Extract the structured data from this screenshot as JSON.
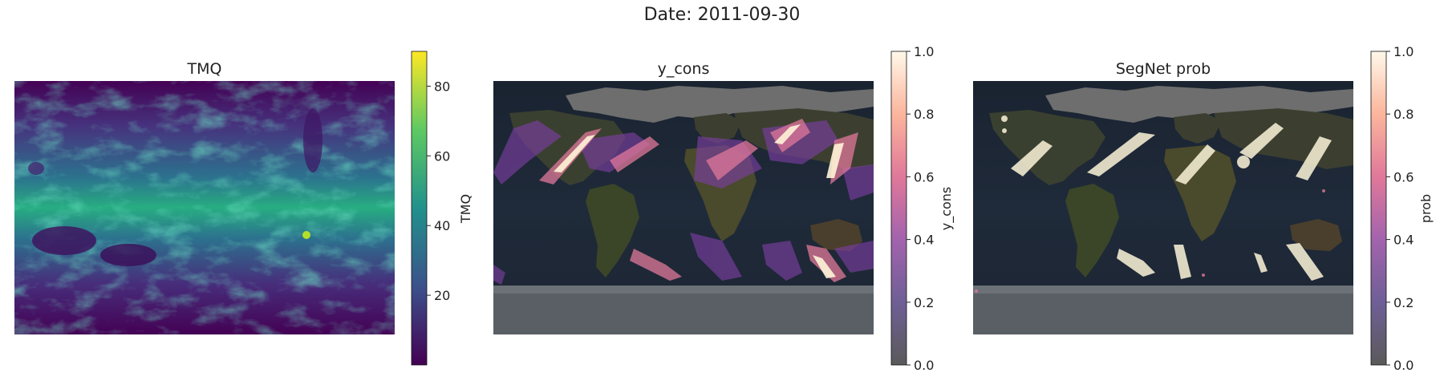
{
  "figure": {
    "title": "Date: 2011-09-30"
  },
  "chart_data": [
    {
      "type": "heatmap",
      "title": "TMQ",
      "colorbar": {
        "label": "TMQ",
        "cmap": "viridis",
        "range": [
          0,
          90
        ],
        "ticks": [
          20,
          40,
          60,
          80
        ]
      },
      "xlabel": "",
      "ylabel": ""
    },
    {
      "type": "heatmap",
      "title": "y_cons",
      "colorbar": {
        "label": "y_cons",
        "cmap": "magma-like",
        "range": [
          0.0,
          1.0
        ],
        "ticks": [
          "0.0",
          "0.2",
          "0.4",
          "0.6",
          "0.8",
          "1.0"
        ]
      },
      "xlabel": "",
      "ylabel": ""
    },
    {
      "type": "heatmap",
      "title": "SegNet prob",
      "colorbar": {
        "label": "prob",
        "cmap": "magma-like",
        "range": [
          0.0,
          1.0
        ],
        "ticks": [
          "0.0",
          "0.2",
          "0.4",
          "0.6",
          "0.8",
          "1.0"
        ]
      },
      "xlabel": "",
      "ylabel": ""
    }
  ],
  "colors": {
    "viridis": [
      "#440154",
      "#3b528b",
      "#21918c",
      "#5ec962",
      "#fde725"
    ],
    "prob": [
      "#5a5a5a",
      "#7b5fa8",
      "#c062a6",
      "#f29089",
      "#fde0b8",
      "#fff8ea"
    ]
  }
}
